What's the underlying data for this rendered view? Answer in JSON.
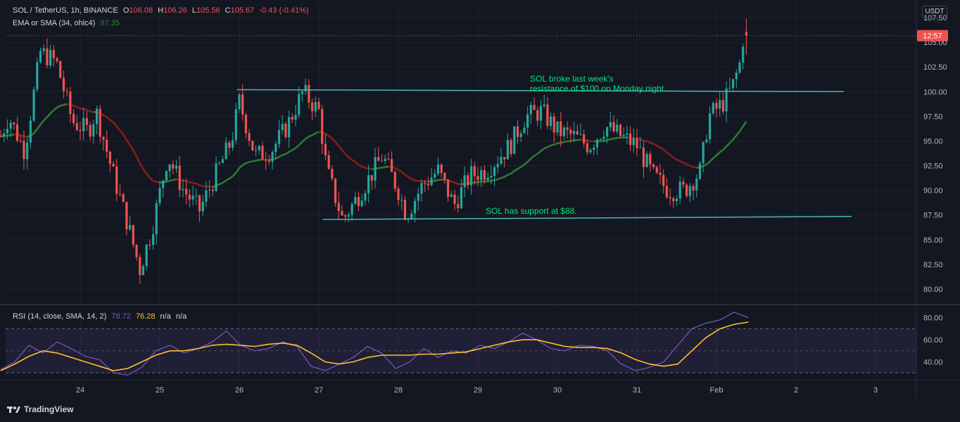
{
  "header": {
    "symbol": "SOL / TetherUS, 1h, BINANCE",
    "o_label": "O",
    "o": "106.08",
    "h_label": "H",
    "h": "106.26",
    "l_label": "L",
    "l": "105.56",
    "c_label": "C",
    "c": "105.67",
    "change": "-0.43 (-0.41%)",
    "ema_label": "EMA or SMA (34, ohlc4)",
    "ema_value": "97.35",
    "rsi_label": "RSI (14, close, SMA, 14, 2)",
    "rsi_value": "78.72",
    "rsi_sma_value": "76.28",
    "na1": "n/a",
    "na2": "n/a"
  },
  "currency_button": "USDT",
  "price_badge": "12:57",
  "branding": "TradingView",
  "colors": {
    "background": "#131722",
    "up": "#26a69a",
    "down": "#ef5350",
    "ema_down": "#8e1b1b",
    "ema_up": "#2e7d32",
    "annotation": "#00e676",
    "trendline": "#4db6ac",
    "rsi": "#7e57c2",
    "rsi_sma": "#fbc02d"
  },
  "chart_data": [
    {
      "type": "candlestick",
      "title": "SOL / TetherUS, 1h, BINANCE",
      "y_ticks": [
        "107.50",
        "105.00",
        "102.50",
        "100.00",
        "97.50",
        "95.00",
        "92.50",
        "90.00",
        "87.50",
        "85.00",
        "82.50",
        "80.00"
      ],
      "x_ticks": [
        "24",
        "25",
        "26",
        "27",
        "28",
        "29",
        "30",
        "31",
        "Feb",
        "2",
        "3"
      ],
      "ylim": [
        78.5,
        109
      ],
      "keypoints": [
        {
          "x": "23.0",
          "y": 95.5
        },
        {
          "x": "23.1",
          "y": 97.5
        },
        {
          "x": "23.3",
          "y": 94.0
        },
        {
          "x": "23.5",
          "y": 104.0
        },
        {
          "x": "23.7",
          "y": 103.0
        },
        {
          "x": "23.9",
          "y": 97.0
        },
        {
          "x": "24.1",
          "y": 96.0
        },
        {
          "x": "24.2",
          "y": 98.0
        },
        {
          "x": "24.4",
          "y": 92.0
        },
        {
          "x": "24.6",
          "y": 86.5
        },
        {
          "x": "24.75",
          "y": 82.0
        },
        {
          "x": "24.9",
          "y": 86.0
        },
        {
          "x": "25.1",
          "y": 93.5
        },
        {
          "x": "25.3",
          "y": 90.0
        },
        {
          "x": "25.5",
          "y": 88.0
        },
        {
          "x": "25.7",
          "y": 91.5
        },
        {
          "x": "25.9",
          "y": 95.0
        },
        {
          "x": "26.0",
          "y": 99.0
        },
        {
          "x": "26.2",
          "y": 93.5
        },
        {
          "x": "26.4",
          "y": 94.0
        },
        {
          "x": "26.6",
          "y": 96.5
        },
        {
          "x": "26.8",
          "y": 100.0
        },
        {
          "x": "27.0",
          "y": 98.0
        },
        {
          "x": "27.1",
          "y": 92.0
        },
        {
          "x": "27.3",
          "y": 87.0
        },
        {
          "x": "27.5",
          "y": 89.5
        },
        {
          "x": "27.8",
          "y": 93.5
        },
        {
          "x": "28.0",
          "y": 90.0
        },
        {
          "x": "28.1",
          "y": 87.5
        },
        {
          "x": "28.3",
          "y": 90.5
        },
        {
          "x": "28.5",
          "y": 92.0
        },
        {
          "x": "28.7",
          "y": 88.5
        },
        {
          "x": "28.9",
          "y": 91.5
        },
        {
          "x": "29.1",
          "y": 92.0
        },
        {
          "x": "29.4",
          "y": 94.5
        },
        {
          "x": "29.6",
          "y": 97.5
        },
        {
          "x": "29.8",
          "y": 98.0
        },
        {
          "x": "30.0",
          "y": 96.0
        },
        {
          "x": "30.2",
          "y": 95.5
        },
        {
          "x": "30.4",
          "y": 94.5
        },
        {
          "x": "30.6",
          "y": 96.5
        },
        {
          "x": "30.8",
          "y": 95.5
        },
        {
          "x": "31.0",
          "y": 94.5
        },
        {
          "x": "31.2",
          "y": 91.5
        },
        {
          "x": "31.4",
          "y": 90.0
        },
        {
          "x": "31.6",
          "y": 90.0
        },
        {
          "x": "31.8",
          "y": 92.0
        },
        {
          "x": "31.9",
          "y": 97.5
        },
        {
          "x": "Feb 1.1",
          "y": 99.0
        },
        {
          "x": "Feb 1.2",
          "y": 100.5
        },
        {
          "x": "Feb 1.3",
          "y": 103.0
        },
        {
          "x": "Feb 1.35",
          "y": 106.5
        },
        {
          "x": "Feb 1.4",
          "y": 105.67
        }
      ],
      "last_price": 105.67,
      "ema": {
        "name": "EMA or SMA (34, ohlc4)",
        "last": 97.35
      },
      "annotations": [
        {
          "text_line1": "SOL broke last week's",
          "text_line2": "resistance of $100 on Monday night.",
          "resistance": 100
        },
        {
          "text": "SOL has support at $88.",
          "support": 88
        }
      ]
    },
    {
      "type": "line",
      "title": "RSI (14, close, SMA, 14, 2)",
      "y_ticks": [
        "80.00",
        "60.00",
        "40.00"
      ],
      "bands": [
        70,
        50,
        30
      ],
      "ylim": [
        25,
        90
      ],
      "series": [
        {
          "name": "RSI",
          "last": 78.72,
          "values": [
            33,
            40,
            55,
            48,
            58,
            52,
            45,
            42,
            30,
            28,
            35,
            50,
            55,
            48,
            52,
            58,
            68,
            55,
            50,
            52,
            58,
            54,
            36,
            32,
            38,
            44,
            54,
            48,
            34,
            40,
            52,
            44,
            50,
            48,
            55,
            52,
            58,
            66,
            60,
            52,
            50,
            55,
            54,
            50,
            38,
            32,
            35,
            40,
            55,
            70,
            75,
            78,
            85,
            80
          ]
        },
        {
          "name": "SMA",
          "last": 76.28,
          "values": [
            32,
            38,
            45,
            50,
            48,
            44,
            40,
            36,
            32,
            34,
            40,
            46,
            50,
            50,
            52,
            55,
            56,
            55,
            54,
            56,
            57,
            55,
            48,
            40,
            38,
            40,
            44,
            46,
            46,
            46,
            47,
            47,
            48,
            49,
            52,
            55,
            58,
            60,
            60,
            57,
            54,
            53,
            53,
            52,
            48,
            42,
            38,
            36,
            38,
            50,
            62,
            70,
            74,
            76
          ]
        }
      ]
    }
  ]
}
